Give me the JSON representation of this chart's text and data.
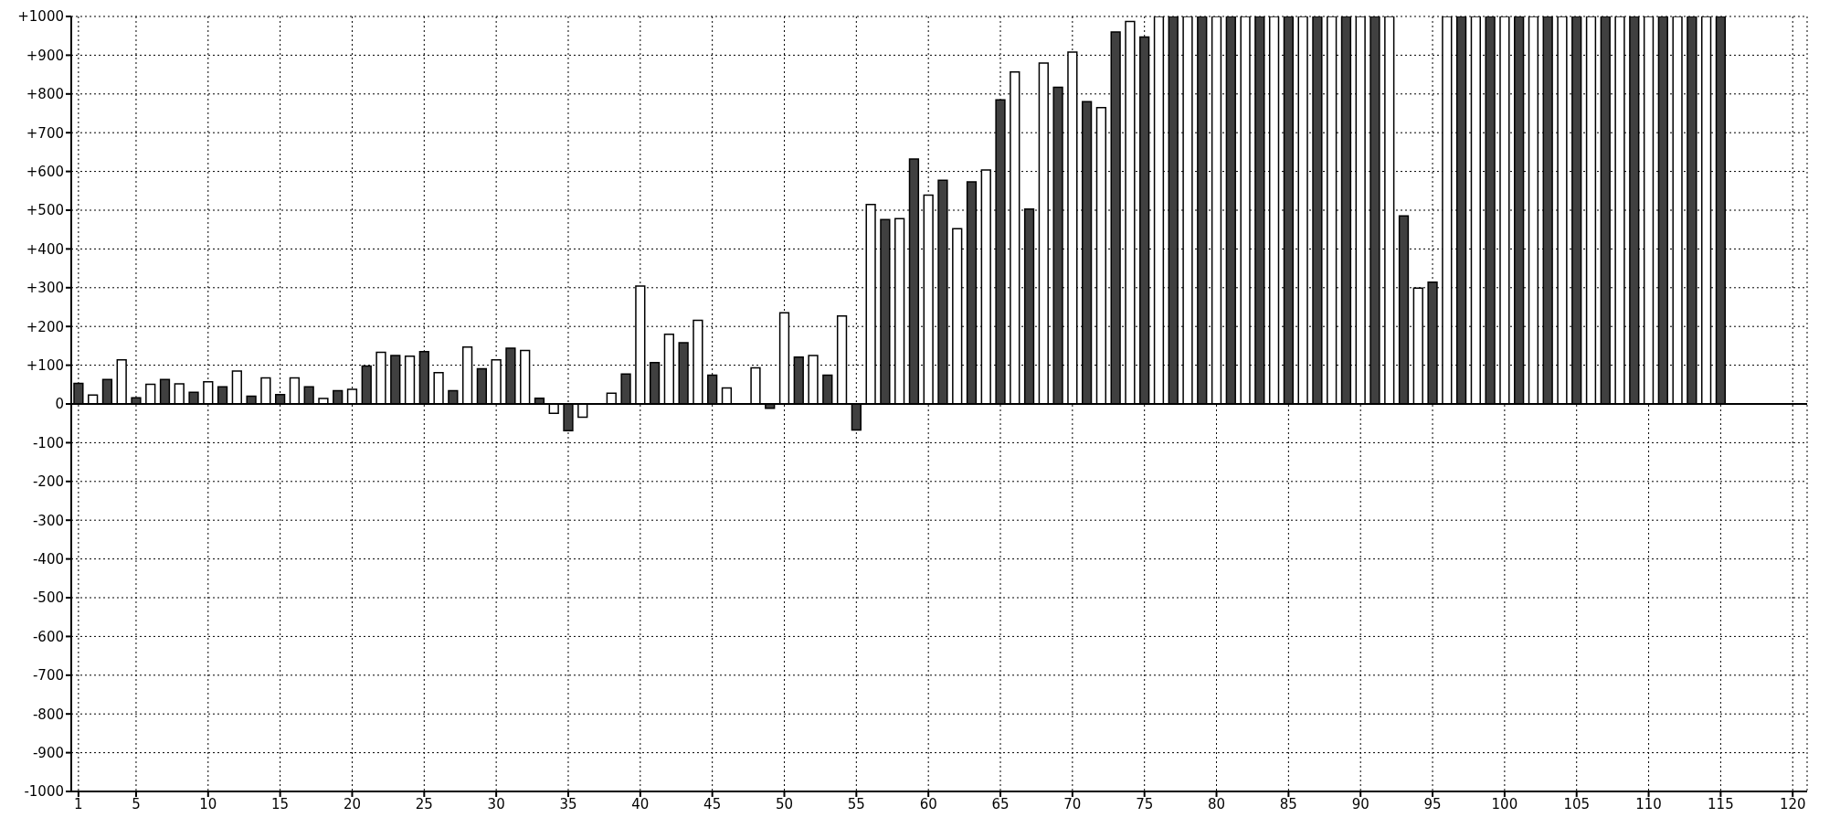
{
  "chart_data": {
    "type": "bar",
    "x": [
      1,
      2,
      3,
      4,
      5,
      6,
      7,
      8,
      9,
      10,
      11,
      12,
      13,
      14,
      15,
      16,
      17,
      18,
      19,
      20,
      21,
      22,
      23,
      24,
      25,
      26,
      27,
      28,
      29,
      30,
      31,
      32,
      33,
      34,
      35,
      36,
      37,
      38,
      39,
      40,
      41,
      42,
      43,
      44,
      45,
      46,
      47,
      48,
      49,
      50,
      51,
      52,
      53,
      54,
      55,
      56,
      57,
      58,
      59,
      60,
      61,
      62,
      63,
      64,
      65,
      66,
      67,
      68,
      69,
      70,
      71,
      72,
      73,
      74,
      75,
      76,
      77,
      78,
      79,
      80,
      81,
      82,
      83,
      84,
      85,
      86,
      87,
      88,
      89,
      90,
      91,
      92,
      93,
      94,
      95,
      96,
      97,
      98,
      99,
      100,
      101,
      102,
      103,
      104,
      105,
      106,
      107,
      108,
      109,
      110,
      111,
      112,
      113,
      114,
      115
    ],
    "values": [
      53,
      23,
      63,
      114,
      16,
      51,
      63,
      52,
      30,
      57,
      44,
      85,
      20,
      67,
      24,
      67,
      44,
      14,
      34,
      38,
      98,
      133,
      125,
      123,
      135,
      81,
      34,
      147,
      91,
      114,
      144,
      138,
      15,
      -24,
      -69,
      -34,
      null,
      28,
      77,
      304,
      107,
      180,
      158,
      216,
      74,
      41,
      null,
      93,
      -11,
      235,
      121,
      125,
      74,
      227,
      -67,
      515,
      476,
      478,
      632,
      539,
      577,
      452,
      573,
      604,
      785,
      857,
      503,
      880,
      817,
      908,
      780,
      765,
      960,
      987,
      947,
      1000,
      1000,
      1000,
      1000,
      1000,
      1000,
      1000,
      1000,
      1000,
      1000,
      1000,
      1000,
      1000,
      1000,
      1000,
      1000,
      1000,
      485,
      299,
      314,
      1000,
      1000,
      1000,
      1000,
      1000,
      1000,
      1000,
      1000,
      1000,
      1000,
      1000,
      1000,
      1000,
      1000,
      1000,
      1000,
      1000,
      1000,
      1000,
      1000
    ],
    "colors": [
      "#404040",
      "#ffffff",
      "#404040",
      "#ffffff",
      "#404040",
      "#ffffff",
      "#404040",
      "#ffffff",
      "#404040",
      "#ffffff",
      "#404040",
      "#ffffff",
      "#404040",
      "#ffffff",
      "#404040",
      "#ffffff",
      "#404040",
      "#ffffff",
      "#404040",
      "#ffffff",
      "#404040",
      "#ffffff",
      "#404040",
      "#ffffff",
      "#404040",
      "#ffffff",
      "#404040",
      "#ffffff",
      "#404040",
      "#ffffff",
      "#404040",
      "#ffffff",
      "#404040",
      "#ffffff",
      "#404040",
      "#ffffff",
      "#404040",
      "#ffffff",
      "#404040",
      "#ffffff",
      "#404040",
      "#ffffff",
      "#404040",
      "#ffffff",
      "#404040",
      "#ffffff",
      "#404040",
      "#ffffff",
      "#404040",
      "#ffffff",
      "#404040",
      "#ffffff",
      "#404040",
      "#ffffff",
      "#404040",
      "#ffffff",
      "#404040",
      "#ffffff",
      "#404040",
      "#ffffff",
      "#404040",
      "#ffffff",
      "#404040",
      "#ffffff",
      "#404040",
      "#ffffff",
      "#404040",
      "#ffffff",
      "#404040",
      "#ffffff",
      "#404040",
      "#ffffff",
      "#404040",
      "#ffffff",
      "#404040",
      "#ffffff",
      "#404040",
      "#ffffff",
      "#404040",
      "#ffffff",
      "#404040",
      "#ffffff",
      "#404040",
      "#ffffff",
      "#404040",
      "#ffffff",
      "#404040",
      "#ffffff",
      "#404040",
      "#ffffff",
      "#404040",
      "#ffffff",
      "#404040",
      "#ffffff",
      "#404040",
      "#ffffff",
      "#404040",
      "#ffffff",
      "#404040",
      "#ffffff",
      "#404040",
      "#ffffff",
      "#404040",
      "#ffffff",
      "#404040",
      "#ffffff",
      "#404040",
      "#ffffff",
      "#404040",
      "#ffffff",
      "#404040",
      "#ffffff",
      "#404040",
      "#ffffff",
      "#404040"
    ],
    "xlim": [
      0.5,
      121
    ],
    "xticks": [
      1,
      5,
      10,
      15,
      20,
      25,
      30,
      35,
      40,
      45,
      50,
      55,
      60,
      65,
      70,
      75,
      80,
      85,
      90,
      95,
      100,
      105,
      110,
      115,
      120
    ],
    "ylim": [
      -1000,
      1000
    ],
    "yticks": [
      {
        "value": -1000,
        "label": "-1000"
      },
      {
        "value": -900,
        "label": "-900"
      },
      {
        "value": -800,
        "label": "-800"
      },
      {
        "value": -700,
        "label": "-700"
      },
      {
        "value": -600,
        "label": "-600"
      },
      {
        "value": -500,
        "label": "-500"
      },
      {
        "value": -400,
        "label": "-400"
      },
      {
        "value": -300,
        "label": "-300"
      },
      {
        "value": -200,
        "label": "-200"
      },
      {
        "value": -100,
        "label": "-100"
      },
      0,
      {
        "value": 100,
        "label": "+100"
      },
      {
        "value": 200,
        "label": "+200"
      },
      {
        "value": 300,
        "label": "+300"
      },
      {
        "value": 400,
        "label": "+400"
      },
      {
        "value": 500,
        "label": "+500"
      },
      {
        "value": 600,
        "label": "+600"
      },
      {
        "value": 700,
        "label": "+700"
      },
      {
        "value": 800,
        "label": "+800"
      },
      {
        "value": 900,
        "label": "+900"
      },
      {
        "value": 1000,
        "label": "+1000"
      }
    ],
    "grid": true,
    "ref_lines": [
      {
        "axis": "y",
        "value": 0,
        "color": "#000000"
      }
    ]
  }
}
